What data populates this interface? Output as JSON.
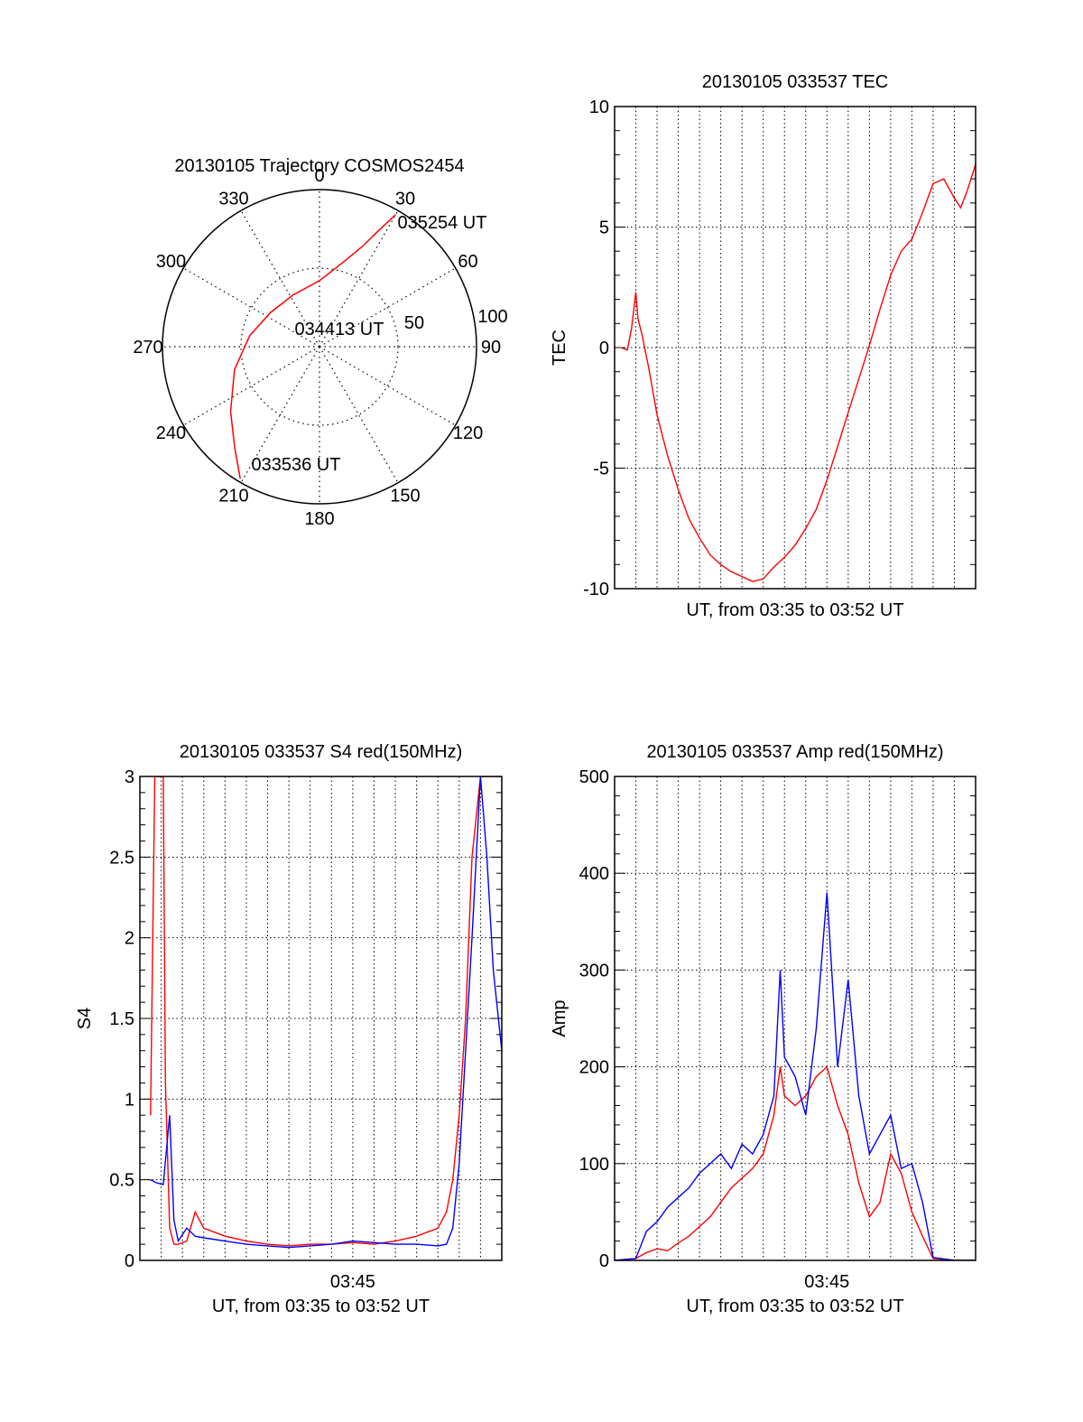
{
  "chart_data": [
    {
      "type": "polar",
      "title": "20130105 Trajectory COSMOS2454",
      "angle_labels": [
        "0",
        "30",
        "60",
        "90",
        "120",
        "150",
        "180",
        "210",
        "240",
        "270",
        "300",
        "330"
      ],
      "radius_labels": [
        "50",
        "100"
      ],
      "rlim": [
        0,
        100
      ],
      "grid": true,
      "color": "#ff0000",
      "annotations": [
        {
          "text": "035254 UT",
          "az": 30,
          "r": 100
        },
        {
          "text": "034413 UT",
          "az": 0,
          "r": 0
        },
        {
          "text": "033536 UT",
          "az": 210,
          "r": 100
        }
      ],
      "series": [
        {
          "points": [
            {
              "az": 211,
              "r": 98
            },
            {
              "az": 220,
              "r": 84
            },
            {
              "az": 234,
              "r": 70
            },
            {
              "az": 255,
              "r": 56
            },
            {
              "az": 279,
              "r": 45
            },
            {
              "az": 305,
              "r": 38
            },
            {
              "az": 333,
              "r": 37
            },
            {
              "az": 360,
              "r": 42
            },
            {
              "az": 15,
              "r": 55
            },
            {
              "az": 23,
              "r": 69
            },
            {
              "az": 27,
              "r": 83
            },
            {
              "az": 30,
              "r": 97
            }
          ]
        }
      ]
    },
    {
      "type": "line",
      "title": "20130105 033537 TEC",
      "xlabel": "UT, from 03:35 to 03:52 UT",
      "ylabel": "TEC",
      "xlim": [
        0,
        17
      ],
      "ylim": [
        -10,
        10
      ],
      "yticks": [
        "10",
        "5",
        "0",
        "-5",
        "-10"
      ],
      "xticks": [],
      "grid": true,
      "series": [
        {
          "color": "#ff0000",
          "x": [
            0.3,
            0.6,
            0.8,
            1.0,
            1.1,
            1.3,
            1.6,
            2.0,
            2.5,
            3.0,
            3.5,
            4.0,
            4.5,
            5.0,
            5.5,
            6.0,
            6.5,
            7.0,
            7.5,
            8.0,
            8.5,
            9.0,
            9.5,
            10.0,
            10.5,
            11.0,
            11.5,
            12.0,
            12.5,
            13.0,
            13.5,
            14.0,
            14.5,
            15.0,
            15.5,
            16.0,
            16.3,
            16.6,
            17.0
          ],
          "y": [
            0.0,
            -0.1,
            0.8,
            2.3,
            1.2,
            0.5,
            -0.8,
            -2.8,
            -4.5,
            -5.9,
            -7.1,
            -7.9,
            -8.6,
            -9.0,
            -9.3,
            -9.5,
            -9.7,
            -9.6,
            -9.1,
            -8.7,
            -8.2,
            -7.5,
            -6.7,
            -5.5,
            -4.1,
            -2.7,
            -1.3,
            0.1,
            1.6,
            3.0,
            4.0,
            4.5,
            5.6,
            6.8,
            7.0,
            6.2,
            5.8,
            6.5,
            7.6
          ]
        }
      ]
    },
    {
      "type": "line",
      "title": "20130105 033537 S4 red(150MHz)",
      "xlabel": "UT, from 03:35 to 03:52 UT",
      "ylabel": "S4",
      "xlim": [
        0,
        17
      ],
      "ylim": [
        0,
        3
      ],
      "yticks": [
        "3",
        "2.5",
        "2",
        "1.5",
        "1",
        "0.5",
        "0"
      ],
      "xticks": [
        "03:45"
      ],
      "grid": true,
      "series": [
        {
          "color": "#ff0000",
          "x": [
            0.5,
            0.7,
            0.9,
            1.1,
            1.2,
            1.4,
            1.6,
            1.8,
            2.2,
            2.6,
            3.0,
            4.0,
            5.0,
            6.0,
            7.0,
            8.0,
            9.0,
            10.0,
            11.0,
            12.0,
            13.0,
            14.0,
            14.4,
            14.7,
            15.0,
            15.3,
            15.6,
            16.0,
            16.5,
            17.0
          ],
          "y": [
            0.9,
            3.0,
            3.0,
            3.0,
            1.1,
            0.2,
            0.1,
            0.1,
            0.12,
            0.3,
            0.2,
            0.15,
            0.12,
            0.1,
            0.09,
            0.1,
            0.1,
            0.11,
            0.1,
            0.12,
            0.15,
            0.2,
            0.3,
            0.5,
            0.9,
            1.5,
            2.5,
            3.0,
            3.0,
            3.0
          ]
        },
        {
          "color": "#0000ff",
          "x": [
            0.5,
            0.8,
            1.1,
            1.4,
            1.6,
            1.8,
            2.2,
            2.6,
            3.0,
            4.0,
            5.0,
            6.0,
            7.0,
            8.0,
            9.0,
            10.0,
            11.0,
            12.0,
            13.0,
            14.0,
            14.4,
            14.7,
            15.0,
            15.3,
            15.6,
            16.0,
            16.3,
            16.6,
            17.0
          ],
          "y": [
            0.5,
            0.48,
            0.47,
            0.9,
            0.25,
            0.12,
            0.2,
            0.15,
            0.14,
            0.12,
            0.1,
            0.09,
            0.08,
            0.09,
            0.1,
            0.12,
            0.11,
            0.1,
            0.1,
            0.09,
            0.1,
            0.2,
            0.6,
            1.3,
            2.0,
            3.0,
            2.5,
            1.8,
            1.3
          ]
        }
      ]
    },
    {
      "type": "line",
      "title": "20130105 033537 Amp red(150MHz)",
      "xlabel": "UT, from 03:35 to 03:52 UT",
      "ylabel": "Amp",
      "xlim": [
        0,
        17
      ],
      "ylim": [
        0,
        500
      ],
      "yticks": [
        "500",
        "400",
        "300",
        "200",
        "100",
        "0"
      ],
      "xticks": [
        "03:45"
      ],
      "grid": true,
      "series": [
        {
          "color": "#ff0000",
          "x": [
            0,
            1.0,
            1.5,
            2.0,
            2.5,
            3.0,
            3.5,
            4.0,
            4.5,
            5.0,
            5.5,
            6.0,
            6.5,
            7.0,
            7.5,
            7.8,
            8.0,
            8.5,
            9.0,
            9.5,
            10.0,
            10.5,
            11.0,
            11.5,
            12.0,
            12.5,
            13.0,
            13.5,
            14.0,
            14.5,
            15.0,
            16.0,
            17.0
          ],
          "y": [
            0,
            2,
            8,
            12,
            10,
            18,
            25,
            35,
            45,
            60,
            75,
            85,
            95,
            110,
            150,
            200,
            170,
            160,
            170,
            190,
            200,
            160,
            130,
            80,
            45,
            60,
            110,
            90,
            50,
            25,
            2,
            0,
            0
          ]
        },
        {
          "color": "#0000ff",
          "x": [
            0,
            1.0,
            1.5,
            2.0,
            2.5,
            3.0,
            3.5,
            4.0,
            4.5,
            5.0,
            5.5,
            6.0,
            6.5,
            7.0,
            7.5,
            7.8,
            8.0,
            8.5,
            9.0,
            9.5,
            10.0,
            10.5,
            11.0,
            11.5,
            12.0,
            12.5,
            13.0,
            13.5,
            14.0,
            14.5,
            15.0,
            16.0,
            17.0
          ],
          "y": [
            0,
            2,
            30,
            40,
            55,
            65,
            75,
            90,
            100,
            110,
            95,
            120,
            110,
            130,
            170,
            300,
            210,
            190,
            150,
            240,
            380,
            200,
            290,
            170,
            110,
            130,
            150,
            95,
            100,
            60,
            3,
            0,
            0
          ]
        }
      ]
    }
  ]
}
